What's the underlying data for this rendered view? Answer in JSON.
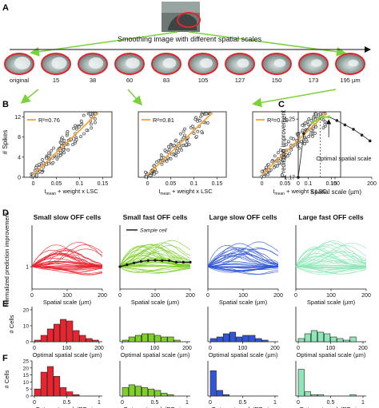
{
  "panels": {
    "A": {
      "label": "A",
      "caption": "Smoothing image with different spatial scales",
      "scales": [
        "original",
        "15",
        "38",
        "60",
        "83",
        "105",
        "127",
        "150",
        "173",
        "195 µm"
      ]
    },
    "B": {
      "label": "B",
      "ylabel": "# Spikes",
      "xlabel": "I + weight x LSC",
      "xlabel_sub": "mean",
      "r2": [
        "R²=0.76",
        "R²=0.81",
        "R²=0.79"
      ],
      "yticks": [
        "0",
        "4",
        "8",
        "12"
      ],
      "xticks": [
        "0",
        "0.05",
        "0.1",
        "0.15"
      ]
    },
    "C": {
      "label": "C",
      "ylabel": "Prediction improvement",
      "xlabel": "Spatial scale (µm)",
      "annotation": "Optimal spatial scale",
      "yticks": [
        "1.17",
        "1.25"
      ],
      "xticks": [
        "0",
        "100",
        "200"
      ]
    },
    "D": {
      "label": "D",
      "ylabel": "Normalized prediction improvement",
      "xlabel": "Spatial scale (µm)",
      "ytick": "1",
      "xticks": [
        "0",
        "100",
        "200"
      ],
      "titles": [
        "Small slow OFF cells",
        "Small fast OFF cells",
        "Large slow OFF cells",
        "Large fast OFF cells"
      ],
      "legend": "Sample cell"
    },
    "E": {
      "label": "E",
      "ylabel": "# Cells",
      "xlabel": "Optimal spatial scale (µm)",
      "yticks": [
        "0",
        "10",
        "20"
      ],
      "xticks": [
        "0",
        "100",
        "200"
      ]
    },
    "F": {
      "label": "F",
      "ylabel": "# Cells",
      "xlabel": "Opt. spat. scale/RF size",
      "yticks": [
        "0",
        "5",
        "10",
        "15",
        "20",
        "25"
      ],
      "xticks": [
        "0",
        "0.5",
        "1"
      ]
    }
  },
  "colors": {
    "small_slow": "#e8242f",
    "small_fast": "#7fcf2a",
    "large_slow": "#2f56d6",
    "large_fast": "#8fe6b8",
    "fit": "#f7a233",
    "arrow": "#7ad23a"
  },
  "chart_data": [
    {
      "type": "scatter",
      "title": "",
      "xlabel": "I_mean + weight x LSC",
      "ylabel": "# Spikes",
      "xlim": [
        -0.02,
        0.17
      ],
      "ylim": [
        0,
        13
      ],
      "series": [
        {
          "name": "R²=0.76",
          "fit_slope": 90,
          "fit_intercept": 0.5
        }
      ]
    },
    {
      "type": "scatter",
      "xlabel": "I_mean + weight x LSC",
      "xlim": [
        -0.02,
        0.17
      ],
      "ylim": [
        0,
        13
      ],
      "series": [
        {
          "name": "R²=0.81",
          "fit_slope": 90,
          "fit_intercept": 0.5
        }
      ]
    },
    {
      "type": "scatter",
      "xlabel": "I_mean + weight x LSC",
      "xlim": [
        -0.02,
        0.17
      ],
      "ylim": [
        0,
        13
      ],
      "series": [
        {
          "name": "R²=0.79",
          "fit_slope": 90,
          "fit_intercept": 0.5
        }
      ]
    },
    {
      "type": "line",
      "xlabel": "Spatial scale (µm)",
      "ylabel": "Prediction improvement",
      "xlim": [
        0,
        200
      ],
      "ylim": [
        1.17,
        1.26
      ],
      "x": [
        0,
        15,
        38,
        60,
        83,
        105,
        127,
        150,
        173,
        195
      ],
      "y": [
        1.17,
        1.23,
        1.245,
        1.252,
        1.253,
        1.248,
        1.242,
        1.236,
        1.228,
        1.22
      ]
    },
    {
      "type": "bar",
      "title": "Small slow OFF cells",
      "xlabel": "Optimal spatial scale (µm)",
      "ylabel": "# Cells",
      "categories": [
        "0",
        "15",
        "38",
        "60",
        "83",
        "105",
        "127",
        "150",
        "173",
        "195"
      ],
      "values": [
        1,
        4,
        8,
        11,
        14,
        13,
        7,
        4,
        2,
        1
      ],
      "ylim": [
        0,
        22
      ]
    },
    {
      "type": "bar",
      "title": "Small fast OFF cells",
      "categories": [
        "0",
        "15",
        "38",
        "60",
        "83",
        "105",
        "127",
        "150",
        "173",
        "195"
      ],
      "values": [
        1,
        3,
        4,
        5,
        5,
        4,
        3,
        3,
        1,
        0
      ],
      "ylim": [
        0,
        22
      ]
    },
    {
      "type": "bar",
      "title": "Large slow OFF cells",
      "categories": [
        "0",
        "15",
        "38",
        "60",
        "83",
        "105",
        "127",
        "150",
        "173",
        "195"
      ],
      "values": [
        2,
        3,
        5,
        6,
        3,
        4,
        4,
        2,
        1,
        0
      ],
      "ylim": [
        0,
        22
      ]
    },
    {
      "type": "bar",
      "title": "Large fast OFF cells",
      "categories": [
        "0",
        "15",
        "38",
        "60",
        "83",
        "105",
        "127",
        "150",
        "173",
        "195"
      ],
      "values": [
        2,
        5,
        7,
        6,
        5,
        3,
        2,
        1,
        3,
        0
      ],
      "ylim": [
        0,
        22
      ]
    },
    {
      "type": "bar",
      "title": "Small slow OFF cells",
      "xlabel": "Opt. spat. scale/RF size",
      "ylabel": "# Cells",
      "categories": [
        "0.05",
        "0.15",
        "0.25",
        "0.35",
        "0.45",
        "0.55",
        "0.65",
        "0.75",
        "0.85",
        "0.95"
      ],
      "values": [
        5,
        17,
        21,
        14,
        6,
        3,
        1,
        0,
        0,
        0
      ],
      "ylim": [
        0,
        25
      ]
    },
    {
      "type": "bar",
      "title": "Small fast OFF cells",
      "categories": [
        "0.05",
        "0.15",
        "0.25",
        "0.35",
        "0.45",
        "0.55",
        "0.65",
        "0.75",
        "0.85",
        "0.95"
      ],
      "values": [
        6,
        8,
        7,
        6,
        5,
        4,
        2,
        1,
        0,
        0
      ],
      "ylim": [
        0,
        25
      ]
    },
    {
      "type": "bar",
      "title": "Large slow OFF cells",
      "categories": [
        "0.05",
        "0.15",
        "0.25",
        "0.35",
        "0.45",
        "0.55",
        "0.65",
        "0.75",
        "0.85",
        "0.95"
      ],
      "values": [
        18,
        4,
        1,
        0,
        0,
        0,
        0,
        0,
        0,
        0
      ],
      "ylim": [
        0,
        25
      ]
    },
    {
      "type": "bar",
      "title": "Large fast OFF cells",
      "categories": [
        "0.05",
        "0.15",
        "0.25",
        "0.35",
        "0.45",
        "0.55",
        "0.65",
        "0.75",
        "0.85",
        "0.95"
      ],
      "values": [
        19,
        3,
        1,
        1,
        0,
        0,
        0,
        0,
        1,
        0
      ],
      "ylim": [
        0,
        25
      ]
    }
  ]
}
